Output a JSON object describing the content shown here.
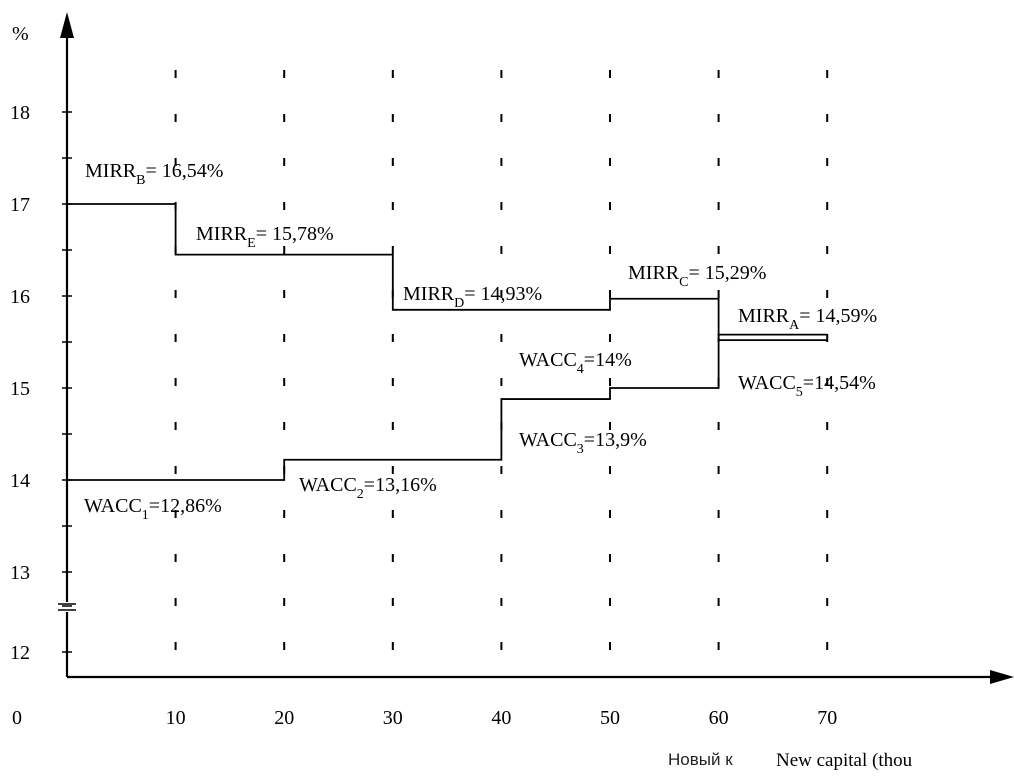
{
  "chart_data": {
    "type": "line",
    "ylabel": "%",
    "xlabel_overlay": "New capital (thou",
    "xlabel_underlay": "Новый к",
    "x_ticks": [
      0,
      10,
      20,
      30,
      40,
      50,
      60,
      70
    ],
    "y_ticks": [
      12,
      13,
      14,
      15,
      16,
      17,
      18
    ],
    "xlim": [
      0,
      70
    ],
    "ylim": [
      12,
      18
    ],
    "grid": "dashed-vertical",
    "series": [
      {
        "name": "MIRR",
        "style": "step",
        "x": [
          0,
          10,
          10,
          30,
          30,
          50,
          50,
          60,
          60,
          70
        ],
        "y": [
          17.0,
          17.0,
          16.45,
          16.45,
          15.85,
          15.85,
          15.97,
          15.97,
          15.58,
          15.58
        ]
      },
      {
        "name": "WACC",
        "style": "step",
        "x": [
          0,
          20,
          20,
          40,
          40,
          50,
          50,
          60,
          60,
          70
        ],
        "y": [
          14.0,
          14.0,
          14.22,
          14.22,
          14.88,
          14.88,
          15.0,
          15.0,
          15.52,
          15.52
        ]
      }
    ],
    "annotations": [
      {
        "main": "MIRR",
        "sub": "B",
        "rest": "= 16,54%"
      },
      {
        "main": "MIRR",
        "sub": "E",
        "rest": "= 15,78%"
      },
      {
        "main": "MIRR",
        "sub": "D",
        "rest": "= 14,93%"
      },
      {
        "main": "MIRR",
        "sub": "C",
        "rest": "= 15,29%"
      },
      {
        "main": "MIRR",
        "sub": "A",
        "rest": "= 14,59%"
      },
      {
        "main": "WACC",
        "sub": "1",
        "rest": "=12,86%"
      },
      {
        "main": "WACC",
        "sub": "2",
        "rest": "=13,16%"
      },
      {
        "main": "WACC",
        "sub": "3",
        "rest": "=13,9%"
      },
      {
        "main": "WACC",
        "sub": "4",
        "rest": "=14%"
      },
      {
        "main": "WACC",
        "sub": "5",
        "rest": "=14,54%"
      }
    ]
  }
}
